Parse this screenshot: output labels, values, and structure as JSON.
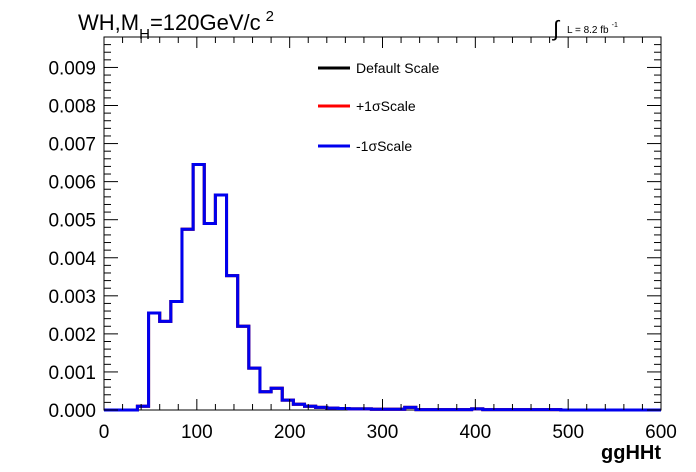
{
  "title_parts": {
    "main": "WH,M",
    "sub": "H",
    "rest": "=120GeV/c",
    "sup": "2"
  },
  "lumi_label": {
    "integral": "∫",
    "text": "L = 8.2 fb",
    "sup": "-1"
  },
  "colors": {
    "default_scale": "#000000",
    "plus_sigma": "#ff0000",
    "minus_sigma": "#0000ee",
    "frame": "#000000",
    "background": "#ffffff"
  },
  "chart_data": {
    "type": "line",
    "style": "step-histogram",
    "xlabel": "ggHHt",
    "ylabel": "",
    "xlim": [
      0,
      600
    ],
    "ylim": [
      0,
      0.0098
    ],
    "x_ticks": [
      0,
      100,
      200,
      300,
      400,
      500,
      600
    ],
    "x_tick_labels": [
      "0",
      "100",
      "200",
      "300",
      "400",
      "500",
      "600"
    ],
    "y_ticks": [
      0,
      0.001,
      0.002,
      0.003,
      0.004,
      0.005,
      0.006,
      0.007,
      0.008,
      0.009
    ],
    "y_tick_labels": [
      "0.000",
      "0.001",
      "0.002",
      "0.003",
      "0.004",
      "0.005",
      "0.006",
      "0.007",
      "0.008",
      "0.009"
    ],
    "grid": false,
    "legend_position": "top-center",
    "bin_width": 12,
    "bin_edges_start": 0,
    "series": [
      {
        "name": "Default Scale",
        "color": "#000000",
        "values": [
          0,
          0,
          0,
          0.0001,
          0.00255,
          0.00233,
          0.00285,
          0.00475,
          0.00645,
          0.0049,
          0.00565,
          0.00353,
          0.0022,
          0.0011,
          0.00048,
          0.00057,
          0.00026,
          0.00015,
          0.0001,
          7e-05,
          5e-05,
          4e-05,
          3e-05,
          3e-05,
          2e-05,
          2e-05,
          2e-05,
          7e-05,
          1e-05,
          1e-05,
          1e-05,
          1e-05,
          1e-05,
          3e-05,
          1e-05,
          1e-05,
          1e-05,
          1e-05,
          1e-05,
          1e-05,
          1e-05,
          0,
          0,
          0,
          0,
          0,
          0,
          0,
          0,
          0
        ]
      },
      {
        "name": "+1σScale",
        "color": "#ff0000",
        "values": [
          0,
          0,
          0,
          0.0001,
          0.00255,
          0.00233,
          0.00285,
          0.00475,
          0.00645,
          0.0049,
          0.00565,
          0.00353,
          0.0022,
          0.0011,
          0.00048,
          0.00057,
          0.00026,
          0.00015,
          0.0001,
          7e-05,
          5e-05,
          4e-05,
          3e-05,
          3e-05,
          2e-05,
          2e-05,
          2e-05,
          7e-05,
          1e-05,
          1e-05,
          1e-05,
          1e-05,
          1e-05,
          3e-05,
          1e-05,
          1e-05,
          1e-05,
          1e-05,
          1e-05,
          1e-05,
          1e-05,
          0,
          0,
          0,
          0,
          0,
          0,
          0,
          0,
          0
        ]
      },
      {
        "name": "-1σScale",
        "color": "#0000ee",
        "values": [
          0,
          0,
          0,
          0.0001,
          0.00255,
          0.00233,
          0.00285,
          0.00475,
          0.00645,
          0.0049,
          0.00565,
          0.00353,
          0.0022,
          0.0011,
          0.00048,
          0.00057,
          0.00026,
          0.00015,
          0.0001,
          7e-05,
          5e-05,
          4e-05,
          3e-05,
          3e-05,
          2e-05,
          2e-05,
          2e-05,
          7e-05,
          1e-05,
          1e-05,
          1e-05,
          1e-05,
          1e-05,
          3e-05,
          1e-05,
          1e-05,
          1e-05,
          1e-05,
          1e-05,
          1e-05,
          1e-05,
          0,
          0,
          0,
          0,
          0,
          0,
          0,
          0,
          0
        ]
      }
    ]
  }
}
